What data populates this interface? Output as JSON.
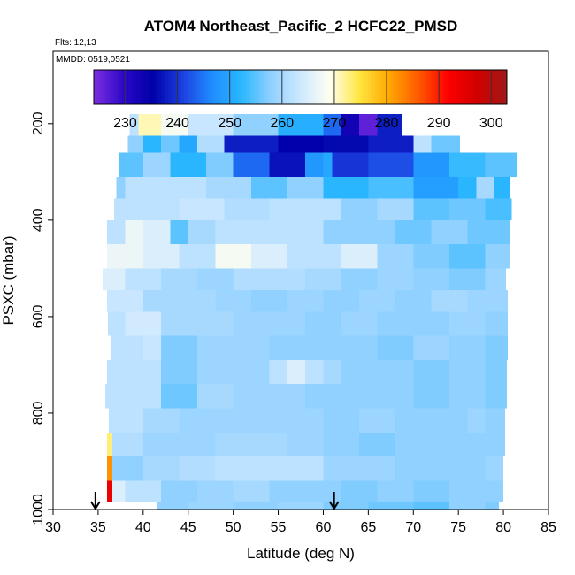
{
  "chart_data": {
    "type": "heatmap",
    "title": "ATOM4 Northeast_Pacific_2 HCFC22_PMSD",
    "subtitle_flights": "Flts: 12,13",
    "subtitle_dates": "MMDD: 0519,0521",
    "xlabel": "Latitude (deg N)",
    "ylabel": "PSXC (mbar)",
    "xlim": [
      30,
      85
    ],
    "ylim": [
      1000,
      50
    ],
    "x_ticks": [
      30,
      35,
      40,
      45,
      50,
      55,
      60,
      65,
      70,
      75,
      80,
      85
    ],
    "y_ticks": [
      200,
      400,
      600,
      800,
      1000
    ],
    "colorbar": {
      "range": [
        224,
        303
      ],
      "ticks": [
        230,
        240,
        250,
        260,
        270,
        280,
        290,
        300
      ],
      "colors": [
        "#7b2fe0",
        "#2d08c8",
        "#0000a8",
        "#1c3fe0",
        "#1f8dff",
        "#2ab7ff",
        "#8fd0ff",
        "#cde8ff",
        "#fffff0",
        "#ffe640",
        "#ffa800",
        "#ff5a00",
        "#ff0000",
        "#d00000",
        "#a01818"
      ]
    },
    "arrows_lat": [
      34.7,
      61.2
    ],
    "rows": [
      {
        "p_top": 180,
        "p_bot": 225,
        "lat_start": 38.5,
        "lat_end": 68.8,
        "segments": [
          [
            38.5,
            262
          ],
          [
            39.5,
            271
          ],
          [
            42,
            268
          ],
          [
            45,
            263
          ],
          [
            50,
            258
          ],
          [
            55,
            251
          ],
          [
            60,
            244
          ],
          [
            62,
            233
          ],
          [
            64,
            226
          ],
          [
            66,
            238
          ]
        ]
      },
      {
        "p_top": 225,
        "p_bot": 260,
        "lat_start": 38.3,
        "lat_end": 75.2,
        "segments": [
          [
            38.3,
            258
          ],
          [
            40,
            252
          ],
          [
            42,
            256
          ],
          [
            44,
            250
          ],
          [
            46,
            261
          ],
          [
            49,
            238
          ],
          [
            52,
            238
          ],
          [
            55,
            235
          ],
          [
            60,
            236
          ],
          [
            65,
            238
          ],
          [
            70,
            262
          ],
          [
            72,
            256
          ]
        ]
      },
      {
        "p_top": 260,
        "p_bot": 310,
        "lat_start": 37.3,
        "lat_end": 81.5,
        "segments": [
          [
            37.3,
            255
          ],
          [
            40,
            259
          ],
          [
            43,
            252
          ],
          [
            47,
            257
          ],
          [
            50,
            244
          ],
          [
            54,
            237
          ],
          [
            58,
            248
          ],
          [
            60,
            250
          ],
          [
            61,
            240
          ],
          [
            65,
            242
          ],
          [
            70,
            248
          ],
          [
            74,
            253
          ],
          [
            78,
            255
          ]
        ]
      },
      {
        "p_top": 310,
        "p_bot": 355,
        "lat_start": 37.0,
        "lat_end": 80.8,
        "segments": [
          [
            37.0,
            258
          ],
          [
            38,
            262
          ],
          [
            42,
            262
          ],
          [
            47,
            260
          ],
          [
            52,
            255
          ],
          [
            56,
            258
          ],
          [
            60,
            252
          ],
          [
            65,
            254
          ],
          [
            70,
            249
          ],
          [
            75,
            252
          ],
          [
            77,
            260
          ],
          [
            79,
            252
          ]
        ]
      },
      {
        "p_top": 355,
        "p_bot": 400,
        "lat_start": 36.8,
        "lat_end": 80.9,
        "segments": [
          [
            36.8,
            262
          ],
          [
            40,
            262
          ],
          [
            44,
            263
          ],
          [
            49,
            261
          ],
          [
            54,
            262
          ],
          [
            58,
            262
          ],
          [
            62,
            258
          ],
          [
            66,
            260
          ],
          [
            70,
            255
          ],
          [
            74,
            256
          ],
          [
            78,
            254
          ]
        ]
      },
      {
        "p_top": 400,
        "p_bot": 450,
        "lat_start": 36.0,
        "lat_end": 80.7,
        "segments": [
          [
            36.0,
            262
          ],
          [
            38,
            267
          ],
          [
            40,
            265
          ],
          [
            43,
            255
          ],
          [
            45,
            260
          ],
          [
            48,
            262
          ],
          [
            52,
            262
          ],
          [
            56,
            262
          ],
          [
            60,
            258
          ],
          [
            64,
            258
          ],
          [
            68,
            256
          ],
          [
            72,
            258
          ],
          [
            76,
            256
          ],
          [
            78,
            256
          ]
        ]
      },
      {
        "p_top": 450,
        "p_bot": 500,
        "lat_start": 36.0,
        "lat_end": 80.8,
        "segments": [
          [
            36.0,
            267
          ],
          [
            40,
            265
          ],
          [
            44,
            262
          ],
          [
            48,
            268
          ],
          [
            52,
            265
          ],
          [
            56,
            262
          ],
          [
            60,
            262
          ],
          [
            62,
            265
          ],
          [
            66,
            259
          ],
          [
            70,
            257
          ],
          [
            74,
            255
          ],
          [
            78,
            258
          ]
        ]
      },
      {
        "p_top": 500,
        "p_bot": 545,
        "lat_start": 35.5,
        "lat_end": 80.3,
        "segments": [
          [
            35.5,
            265
          ],
          [
            38,
            262
          ],
          [
            42,
            260
          ],
          [
            46,
            259
          ],
          [
            50,
            261
          ],
          [
            54,
            261
          ],
          [
            58,
            260
          ],
          [
            62,
            258
          ],
          [
            66,
            259
          ],
          [
            70,
            258
          ],
          [
            74,
            257
          ],
          [
            78,
            259
          ]
        ]
      },
      {
        "p_top": 545,
        "p_bot": 590,
        "lat_start": 36.0,
        "lat_end": 80.5,
        "segments": [
          [
            36.0,
            263
          ],
          [
            40,
            260
          ],
          [
            44,
            260
          ],
          [
            48,
            259
          ],
          [
            52,
            258
          ],
          [
            56,
            259
          ],
          [
            60,
            258
          ],
          [
            64,
            259
          ],
          [
            68,
            258
          ],
          [
            72,
            260
          ],
          [
            76,
            259
          ]
        ]
      },
      {
        "p_top": 590,
        "p_bot": 640,
        "lat_start": 36.1,
        "lat_end": 80.5,
        "segments": [
          [
            36.1,
            262
          ],
          [
            38,
            264
          ],
          [
            42,
            260
          ],
          [
            46,
            260
          ],
          [
            50,
            259
          ],
          [
            54,
            259
          ],
          [
            58,
            258
          ],
          [
            62,
            259
          ],
          [
            66,
            258
          ],
          [
            70,
            258
          ],
          [
            74,
            259
          ],
          [
            78,
            258
          ]
        ]
      },
      {
        "p_top": 640,
        "p_bot": 690,
        "lat_start": 36.5,
        "lat_end": 80.5,
        "segments": [
          [
            36.5,
            262
          ],
          [
            40,
            263
          ],
          [
            42,
            257
          ],
          [
            46,
            259
          ],
          [
            50,
            259
          ],
          [
            54,
            258
          ],
          [
            58,
            258
          ],
          [
            62,
            258
          ],
          [
            66,
            257
          ],
          [
            70,
            259
          ],
          [
            74,
            258
          ],
          [
            78,
            257
          ]
        ]
      },
      {
        "p_top": 690,
        "p_bot": 740,
        "lat_start": 36.0,
        "lat_end": 80.4,
        "segments": [
          [
            36.0,
            262
          ],
          [
            40,
            262
          ],
          [
            42,
            257
          ],
          [
            46,
            259
          ],
          [
            50,
            259
          ],
          [
            54,
            262
          ],
          [
            56,
            265
          ],
          [
            58,
            262
          ],
          [
            60,
            260
          ],
          [
            62,
            258
          ],
          [
            66,
            258
          ],
          [
            70,
            257
          ],
          [
            74,
            258
          ],
          [
            78,
            257
          ]
        ]
      },
      {
        "p_top": 740,
        "p_bot": 790,
        "lat_start": 35.8,
        "lat_end": 80.4,
        "segments": [
          [
            35.8,
            262
          ],
          [
            40,
            262
          ],
          [
            42,
            256
          ],
          [
            46,
            260
          ],
          [
            50,
            259
          ],
          [
            54,
            259
          ],
          [
            58,
            258
          ],
          [
            62,
            258
          ],
          [
            66,
            258
          ],
          [
            70,
            257
          ],
          [
            74,
            258
          ],
          [
            78,
            257
          ]
        ]
      },
      {
        "p_top": 790,
        "p_bot": 840,
        "lat_start": 36.2,
        "lat_end": 80.2,
        "segments": [
          [
            36.2,
            262
          ],
          [
            40,
            260
          ],
          [
            44,
            259
          ],
          [
            48,
            259
          ],
          [
            52,
            259
          ],
          [
            56,
            259
          ],
          [
            60,
            258
          ],
          [
            64,
            259
          ],
          [
            68,
            258
          ],
          [
            72,
            258
          ],
          [
            76,
            259
          ],
          [
            78,
            258
          ]
        ]
      },
      {
        "p_top": 840,
        "p_bot": 890,
        "lat_start": 36.0,
        "lat_end": 80.2,
        "segments": [
          [
            36.0,
            273
          ],
          [
            36.6,
            261
          ],
          [
            40,
            259
          ],
          [
            44,
            259
          ],
          [
            48,
            260
          ],
          [
            52,
            260
          ],
          [
            56,
            259
          ],
          [
            60,
            258
          ],
          [
            64,
            257
          ],
          [
            68,
            258
          ],
          [
            72,
            258
          ],
          [
            76,
            258
          ],
          [
            78,
            258
          ]
        ]
      },
      {
        "p_top": 890,
        "p_bot": 940,
        "lat_start": 36.0,
        "lat_end": 80.0,
        "segments": [
          [
            36.0,
            282
          ],
          [
            36.6,
            258
          ],
          [
            40,
            260
          ],
          [
            44,
            261
          ],
          [
            48,
            262
          ],
          [
            52,
            262
          ],
          [
            56,
            262
          ],
          [
            60,
            259
          ],
          [
            64,
            259
          ],
          [
            68,
            258
          ],
          [
            72,
            258
          ],
          [
            76,
            258
          ],
          [
            78,
            259
          ]
        ]
      },
      {
        "p_top": 940,
        "p_bot": 985,
        "lat_start": 36.0,
        "lat_end": 80.0,
        "segments": [
          [
            36.0,
            294
          ],
          [
            36.6,
            265
          ],
          [
            38,
            262
          ],
          [
            42,
            258
          ],
          [
            46,
            259
          ],
          [
            50,
            260
          ],
          [
            54,
            258
          ],
          [
            58,
            258
          ],
          [
            62,
            257
          ],
          [
            66,
            258
          ],
          [
            70,
            257
          ],
          [
            74,
            258
          ],
          [
            78,
            258
          ]
        ]
      },
      {
        "p_top": 985,
        "p_bot": 1000,
        "lat_start": 41.5,
        "lat_end": 79.5,
        "segments": [
          [
            41.5,
            258
          ],
          [
            45,
            259
          ],
          [
            50,
            258
          ],
          [
            55,
            259
          ],
          [
            60,
            257
          ],
          [
            65,
            256
          ],
          [
            70,
            255
          ],
          [
            74,
            258
          ],
          [
            78,
            257
          ]
        ]
      }
    ]
  }
}
